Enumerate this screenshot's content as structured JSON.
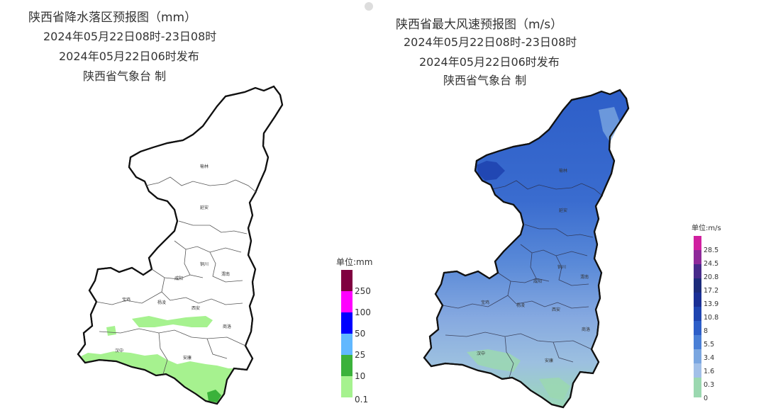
{
  "left": {
    "title": "陕西省降水落区预报图（mm）",
    "period": "2024年05月22日08时-23日08时",
    "issued": "2024年05月22日06时发布",
    "agency": "陕西省气象台 制",
    "legend": {
      "unit": "单位:mm",
      "levels": [
        "250",
        "100",
        "50",
        "25",
        "10",
        "0.1"
      ],
      "colors": [
        "#800040",
        "#ff00ff",
        "#0000ff",
        "#61b8ff",
        "#3bb23b",
        "#a6f28f"
      ]
    }
  },
  "right": {
    "title": "陕西省最大风速预报图（m/s）",
    "period": "2024年05月22日08时-23日08时",
    "issued": "2024年05月22日06时发布",
    "agency": "陕西省气象台 制",
    "legend": {
      "unit": "单位:m/s",
      "levels": [
        "28.5",
        "24.5",
        "20.8",
        "17.2",
        "13.9",
        "10.8",
        "8",
        "5.5",
        "3.4",
        "1.6",
        "0.3",
        "0"
      ],
      "colors": [
        "#d020a0",
        "#8e2a9a",
        "#472a8a",
        "#1c2b7a",
        "#1a2f95",
        "#1f44b0",
        "#2d5ec8",
        "#4a7fd6",
        "#7aa6e0",
        "#a2c0e8",
        "#9bd8b0"
      ]
    }
  },
  "cities": {
    "yulin": "榆林",
    "yanan": "延安",
    "tongchuan": "铜川",
    "weinan": "渭南",
    "xianyang": "咸阳",
    "baoji": "宝鸡",
    "yangling": "杨凌",
    "xian": "西安",
    "shangluo": "商洛",
    "hanzhong": "汉中",
    "ankang": "安康"
  }
}
